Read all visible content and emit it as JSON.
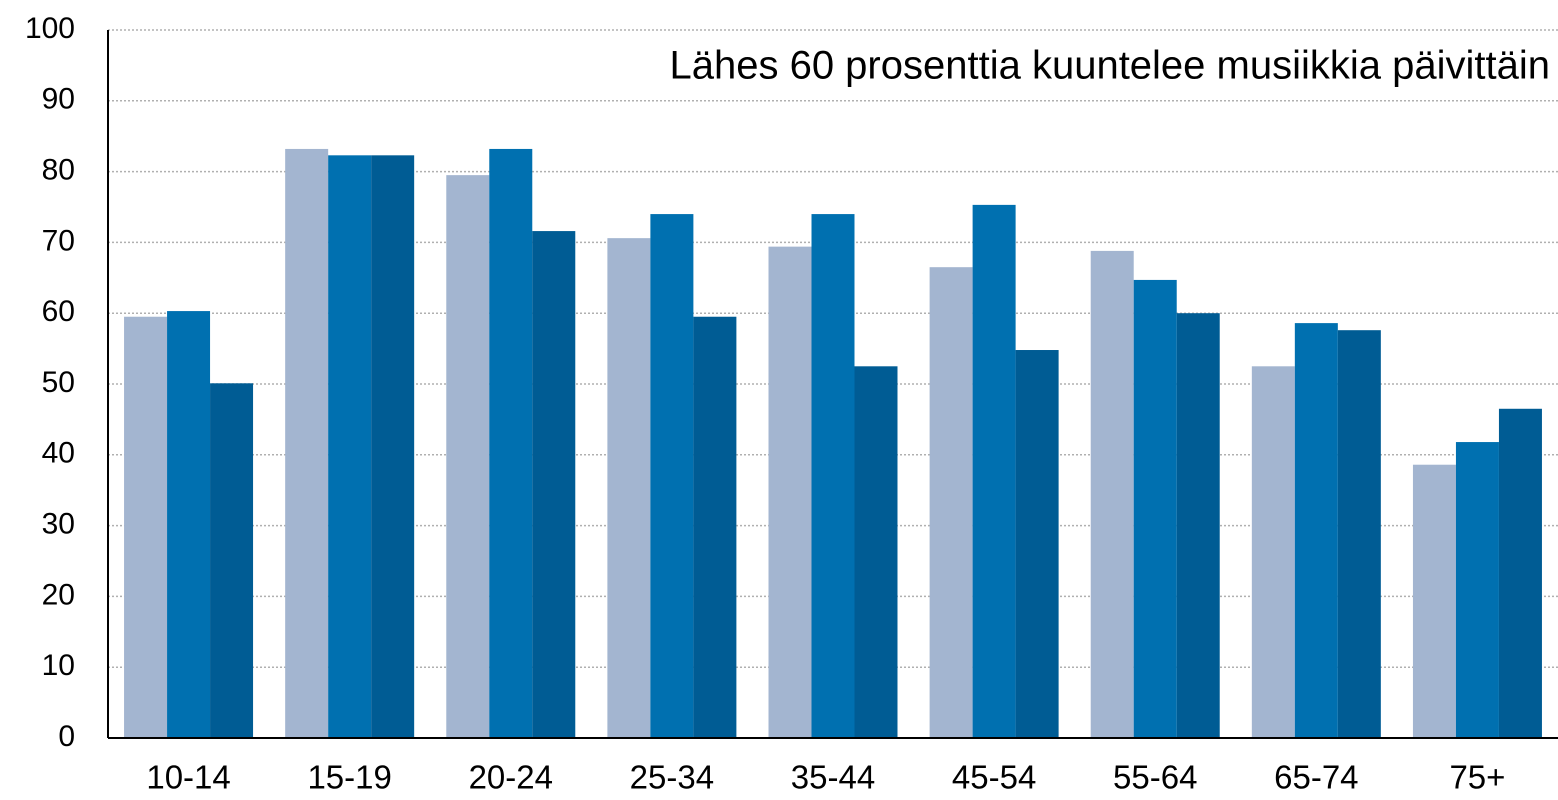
{
  "chart_data": {
    "type": "bar",
    "title": "Lähes 60 prosenttia kuuntelee musiikkia päivittäin",
    "categories": [
      "10-14",
      "15-19",
      "20-24",
      "25-34",
      "35-44",
      "45-54",
      "55-64",
      "65-74",
      "75+"
    ],
    "series": [
      {
        "color": "#a3b5d0",
        "values": [
          59.5,
          83.2,
          79.5,
          70.6,
          69.4,
          66.5,
          68.8,
          52.5,
          38.6
        ]
      },
      {
        "color": "#0070b0",
        "values": [
          60.3,
          82.3,
          83.2,
          74,
          74,
          75.3,
          64.7,
          58.6,
          41.8
        ]
      },
      {
        "color": "#005c94",
        "values": [
          50.1,
          82.3,
          71.6,
          59.5,
          52.5,
          54.8,
          60,
          57.6,
          46.5
        ]
      }
    ],
    "ylim": [
      0,
      100
    ],
    "yticks": [
      0,
      10,
      20,
      30,
      40,
      50,
      60,
      70,
      80,
      90,
      100
    ],
    "grid": true
  }
}
